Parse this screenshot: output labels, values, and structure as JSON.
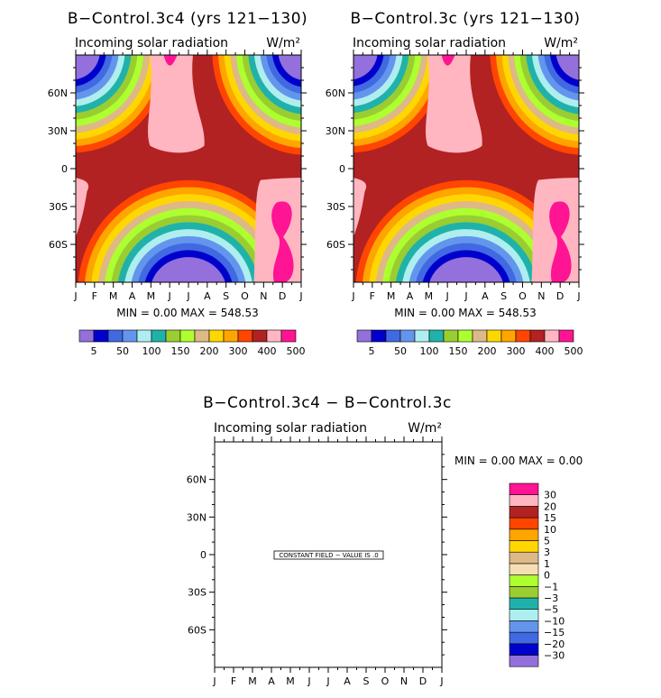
{
  "month_labels": [
    "J",
    "F",
    "M",
    "A",
    "M",
    "J",
    "J",
    "A",
    "S",
    "O",
    "N",
    "D",
    "J"
  ],
  "lat_labels": [
    "60N",
    "30N",
    "0",
    "30S",
    "60S"
  ],
  "lat_values": [
    60,
    30,
    0,
    -30,
    -60
  ],
  "levels_colors": [
    "#9370db",
    "#0000cd",
    "#4169e1",
    "#6495ed",
    "#afeeee",
    "#20b2aa",
    "#9acd32",
    "#adff2f",
    "#deb887",
    "#ffd700",
    "#ffa500",
    "#ff4500",
    "#b22222",
    "#ffb6c1",
    "#ff1493"
  ],
  "levels_colorbar_labels": [
    "5",
    "50",
    "100",
    "150",
    "200",
    "300",
    "400",
    "500"
  ],
  "diff_colors_bottom_to_top": [
    "#9370db",
    "#0000cd",
    "#4169e1",
    "#6495ed",
    "#afeeee",
    "#20b2aa",
    "#9acd32",
    "#adff2f",
    "#f5deb3",
    "#deb887",
    "#ffd700",
    "#ffa500",
    "#ff4500",
    "#b22222",
    "#ffb6c1",
    "#ff1493"
  ],
  "diff_colorbar_labels_top_to_bottom": [
    "30",
    "20",
    "15",
    "10",
    "5",
    "3",
    "1",
    "0",
    "−1",
    "−3",
    "−5",
    "−10",
    "−15",
    "−20",
    "−30"
  ],
  "panels": {
    "left": {
      "title": "B−Control.3c4 (yrs 121−130)",
      "subtitle": "Incoming solar radiation",
      "units": "W/m²",
      "minmax": "MIN =     0.00 MAX = 548.53"
    },
    "right": {
      "title": "B−Control.3c (yrs 121−130)",
      "subtitle": "Incoming solar radiation",
      "units": "W/m²",
      "minmax": "MIN =     0.00 MAX = 548.53"
    },
    "diff": {
      "title": "B−Control.3c4 − B−Control.3c",
      "subtitle": "Incoming solar radiation",
      "units": "W/m²",
      "minmax": "MIN =      0.00 MAX =      0.00",
      "constant_note": "CONSTANT FIELD − VALUE IS .0"
    }
  },
  "chart_data": [
    {
      "type": "heatmap",
      "title": "B−Control.3c4 (yrs 121−130)",
      "subtitle": "Incoming solar radiation",
      "units": "W/m²",
      "x": "month (Jan−Jan)",
      "y": "latitude (90S−90N)",
      "min": 0.0,
      "max": 548.53
    },
    {
      "type": "heatmap",
      "title": "B−Control.3c (yrs 121−130)",
      "subtitle": "Incoming solar radiation",
      "units": "W/m²",
      "x": "month (Jan−Jan)",
      "y": "latitude (90S−90N)",
      "min": 0.0,
      "max": 548.53
    },
    {
      "type": "heatmap",
      "title": "B−Control.3c4 − B−Control.3c",
      "subtitle": "Incoming solar radiation",
      "units": "W/m²",
      "min": 0.0,
      "max": 0.0,
      "constant_value": 0.0
    }
  ]
}
